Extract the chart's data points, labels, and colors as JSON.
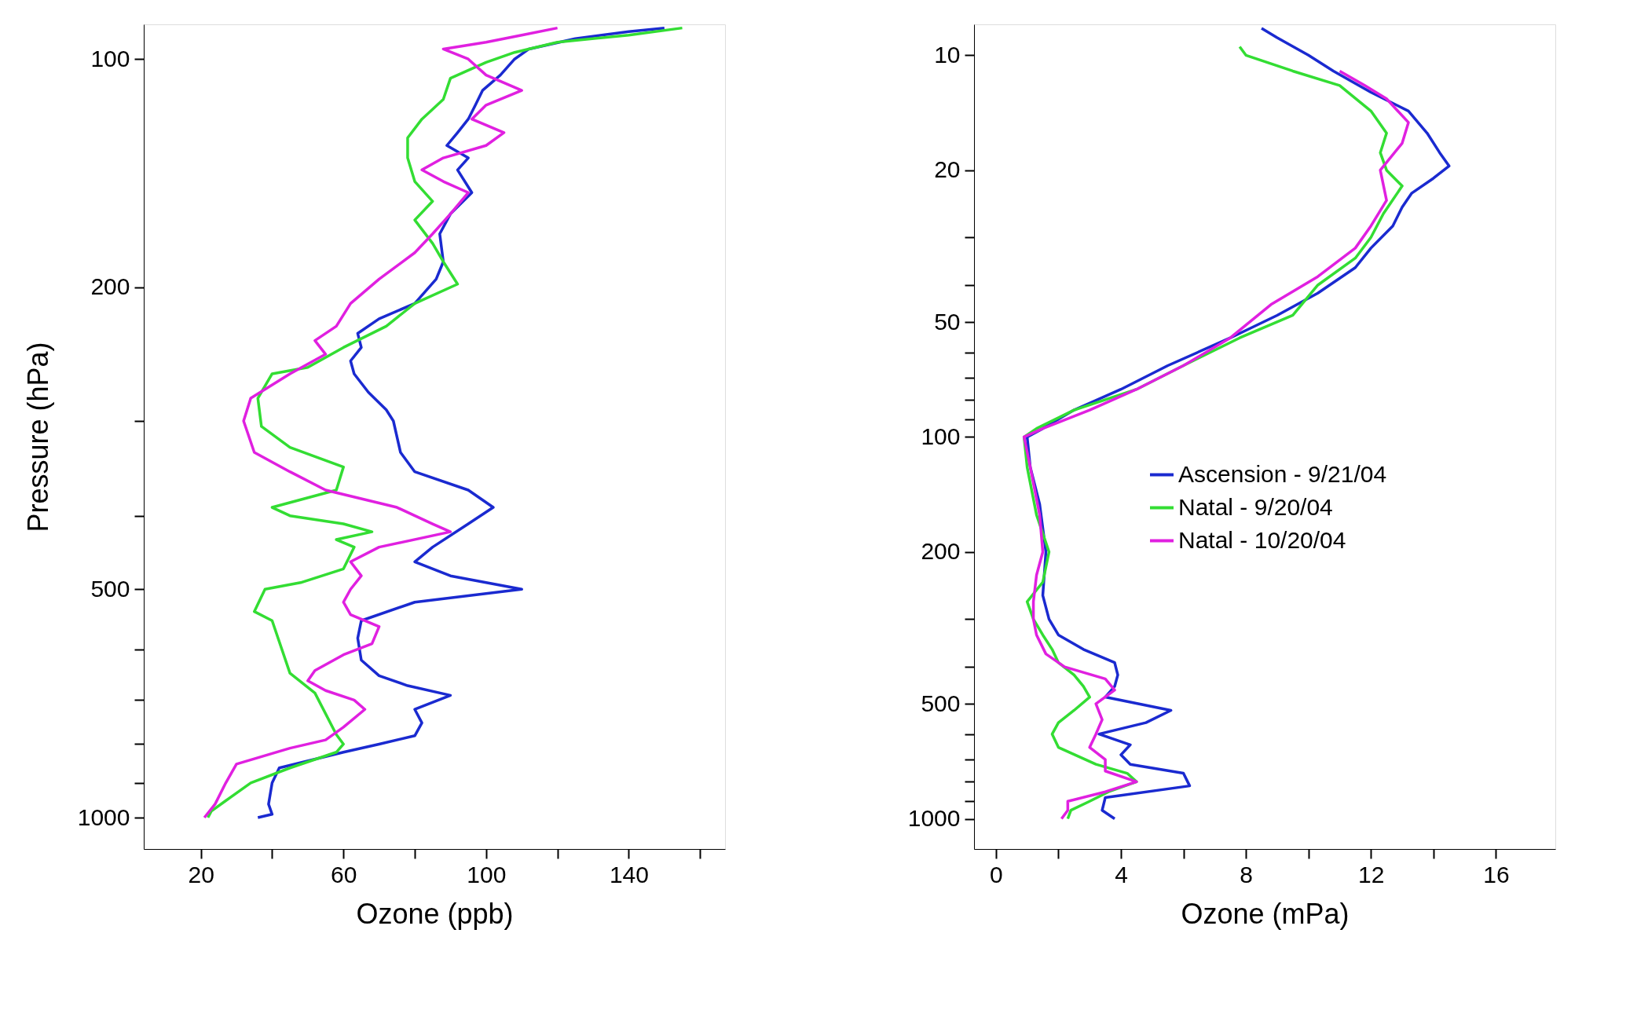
{
  "chart_data": [
    {
      "type": "line",
      "xlabel": "Ozone (ppb)",
      "ylabel": "Pressure (hPa)",
      "log": "y",
      "grid": false,
      "xlim": [
        4,
        167
      ],
      "xticks": [
        20,
        {
          "value": 40,
          "label": null
        },
        60,
        {
          "value": 80,
          "label": null
        },
        100,
        {
          "value": 120,
          "label": null
        },
        140,
        {
          "value": 160,
          "label": null
        }
      ],
      "ylim": [
        1100,
        90
      ],
      "yticks": [
        100,
        200,
        {
          "value": 300,
          "label": null
        },
        {
          "value": 400,
          "label": null
        },
        500,
        {
          "value": 600,
          "label": null
        },
        {
          "value": 700,
          "label": null
        },
        {
          "value": 800,
          "label": null
        },
        {
          "value": 900,
          "label": null
        },
        1000
      ],
      "series": [
        {
          "color": "#1a2ad0",
          "x": [
            36,
            40,
            39,
            40,
            42,
            60,
            70,
            80,
            82,
            80,
            90,
            78,
            70,
            65,
            64,
            65,
            80,
            110,
            90,
            80,
            85,
            95,
            102,
            95,
            80,
            76,
            74,
            72,
            67,
            63,
            62,
            65,
            64,
            70,
            80,
            86,
            88,
            87,
            90,
            96,
            92,
            95,
            89,
            92,
            95,
            97,
            99,
            104,
            108,
            112,
            125,
            140,
            150
          ],
          "values": [
            1000,
            990,
            960,
            900,
            860,
            820,
            800,
            780,
            750,
            720,
            690,
            670,
            650,
            620,
            580,
            550,
            520,
            500,
            480,
            460,
            440,
            410,
            390,
            370,
            350,
            330,
            300,
            290,
            275,
            260,
            250,
            240,
            230,
            220,
            210,
            195,
            185,
            170,
            160,
            150,
            140,
            135,
            130,
            125,
            120,
            115,
            110,
            105,
            100,
            97,
            94,
            92,
            91
          ]
        },
        {
          "color": "#33dd33",
          "x": [
            22,
            23,
            27,
            34,
            45,
            58,
            60,
            58,
            52,
            45,
            40,
            35,
            38,
            48,
            60,
            63,
            58,
            68,
            60,
            45,
            40,
            58,
            60,
            45,
            37,
            36,
            40,
            50,
            60,
            72,
            80,
            92,
            88,
            85,
            80,
            85,
            80,
            78,
            78,
            82,
            88,
            90,
            100,
            108,
            120,
            140,
            155
          ],
          "values": [
            1000,
            980,
            950,
            900,
            860,
            820,
            800,
            777,
            685,
            645,
            550,
            535,
            500,
            490,
            470,
            440,
            430,
            420,
            410,
            400,
            390,
            370,
            345,
            325,
            305,
            280,
            260,
            255,
            240,
            225,
            210,
            198,
            185,
            175,
            163,
            154,
            145,
            135,
            127,
            120,
            113,
            106,
            101,
            98,
            95,
            93,
            91
          ]
        },
        {
          "color": "#e020e0",
          "x": [
            21,
            24,
            27,
            30,
            45,
            55,
            60,
            66,
            63,
            55,
            50,
            52,
            60,
            68,
            70,
            62,
            60,
            62,
            65,
            62,
            70,
            90,
            85,
            75,
            55,
            45,
            35,
            32,
            34,
            45,
            55,
            52,
            58,
            62,
            70,
            80,
            85,
            90,
            95,
            88,
            82,
            88,
            100,
            105,
            96,
            100,
            110,
            100,
            95,
            88,
            100,
            110,
            120
          ],
          "values": [
            1000,
            960,
            900,
            850,
            810,
            790,
            760,
            720,
            700,
            680,
            660,
            640,
            610,
            590,
            560,
            540,
            520,
            500,
            480,
            460,
            440,
            420,
            410,
            390,
            370,
            350,
            330,
            300,
            280,
            260,
            245,
            235,
            225,
            210,
            195,
            180,
            170,
            160,
            150,
            145,
            140,
            135,
            130,
            125,
            120,
            115,
            110,
            105,
            100,
            97,
            95,
            93,
            91
          ]
        }
      ]
    },
    {
      "type": "line",
      "xlabel": "Ozone (mPa)",
      "log": "y",
      "grid": false,
      "legend": "right",
      "xlim": [
        -0.7,
        17.9
      ],
      "xticks": [
        0,
        {
          "value": 2,
          "label": null
        },
        4,
        {
          "value": 6,
          "label": null
        },
        8,
        {
          "value": 10,
          "label": null
        },
        12,
        {
          "value": 14,
          "label": null
        },
        16
      ],
      "ylim": [
        1200,
        8.3
      ],
      "yticks": [
        10,
        20,
        {
          "value": 30,
          "label": null
        },
        {
          "value": 40,
          "label": null
        },
        50,
        {
          "value": 60,
          "label": null
        },
        {
          "value": 70,
          "label": null
        },
        {
          "value": 80,
          "label": null
        },
        {
          "value": 90,
          "label": null
        },
        100,
        200,
        {
          "value": 300,
          "label": null
        },
        {
          "value": 400,
          "label": null
        },
        500,
        {
          "value": 600,
          "label": null
        },
        {
          "value": 700,
          "label": null
        },
        {
          "value": 800,
          "label": null
        },
        {
          "value": 900,
          "label": null
        },
        1000
      ],
      "series": [
        {
          "name": "Ascension - 9/21/04",
          "color": "#1a2ad0",
          "x": [
            3.8,
            3.4,
            3.5,
            6.2,
            6.0,
            4.3,
            4.0,
            4.3,
            3.3,
            4.8,
            5.6,
            3.5,
            3.8,
            3.9,
            3.8,
            2.8,
            2.0,
            1.7,
            1.5,
            1.6,
            1.4,
            1.1,
            1.0,
            1.5,
            2.5,
            4,
            5.5,
            7.5,
            9.0,
            10.3,
            11.5,
            12.0,
            12.7,
            13.0,
            13.3,
            14.0,
            14.5,
            14.2,
            13.8,
            13.2,
            12.0,
            10.8,
            10.0,
            9.0,
            8.5
          ],
          "values": [
            1000,
            950,
            880,
            820,
            760,
            720,
            680,
            640,
            600,
            560,
            520,
            480,
            450,
            420,
            390,
            360,
            330,
            300,
            260,
            200,
            150,
            120,
            100,
            95,
            85,
            75,
            65,
            55,
            48,
            42,
            36,
            32,
            28,
            25,
            23,
            21,
            19.5,
            18,
            16,
            14,
            12.5,
            11,
            10,
            9,
            8.5
          ]
        },
        {
          "name": "Natal - 9/20/04",
          "color": "#33dd33",
          "x": [
            2.3,
            2.4,
            3.0,
            3.6,
            4.5,
            4.2,
            3.2,
            2.0,
            1.8,
            2.0,
            2.5,
            3.0,
            2.8,
            2.5,
            2.0,
            1.8,
            1.5,
            1.2,
            1.0,
            1.5,
            1.7,
            1.3,
            1.0,
            0.9,
            1.3,
            2.5,
            4.5,
            6,
            7.8,
            9.5,
            10.3,
            11.5,
            12.0,
            12.4,
            13.0,
            12.5,
            12.3,
            12.5,
            12.0,
            11.0,
            9.5,
            8.0,
            7.8
          ],
          "values": [
            1000,
            950,
            900,
            850,
            800,
            760,
            720,
            650,
            600,
            560,
            520,
            480,
            450,
            420,
            390,
            360,
            330,
            300,
            270,
            240,
            200,
            160,
            120,
            100,
            95,
            85,
            75,
            65,
            55,
            48,
            40,
            34,
            30,
            26,
            22,
            20,
            18,
            16,
            14,
            12,
            11,
            10,
            9.5
          ]
        },
        {
          "name": "Natal - 10/20/04",
          "color": "#e020e0",
          "x": [
            2.1,
            2.3,
            2.3,
            3.5,
            4.5,
            3.5,
            3.5,
            3.0,
            3.2,
            3.4,
            3.2,
            3.8,
            3.5,
            2.2,
            1.6,
            1.3,
            1.2,
            1.2,
            1.3,
            1.5,
            1.4,
            1.1,
            0.9,
            1.5,
            3.0,
            4.5,
            6,
            7.5,
            8.8,
            10.3,
            11.5,
            12.0,
            12.5,
            12.3,
            13.0,
            13.2,
            12.5,
            11.8,
            11.0
          ],
          "values": [
            1000,
            950,
            900,
            850,
            800,
            750,
            700,
            650,
            600,
            550,
            500,
            460,
            430,
            400,
            370,
            330,
            300,
            270,
            230,
            200,
            160,
            120,
            100,
            95,
            85,
            75,
            65,
            55,
            45,
            38,
            32,
            28,
            24,
            20,
            17,
            15,
            13,
            12,
            11
          ]
        }
      ]
    }
  ]
}
